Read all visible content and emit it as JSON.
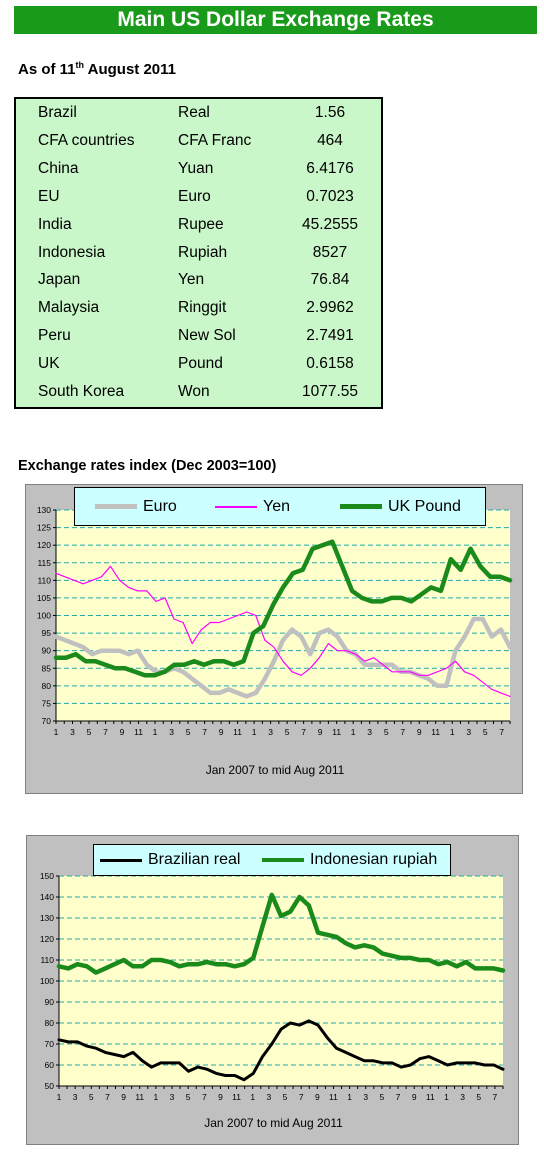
{
  "header": {
    "title": "Main US Dollar Exchange Rates"
  },
  "as_of": {
    "prefix": "As of 11",
    "suffix": "th",
    "rest": " August 2011"
  },
  "rates": [
    {
      "country": "Brazil",
      "currency": "Real",
      "value": "1.56"
    },
    {
      "country": "CFA countries",
      "currency": "CFA Franc",
      "value": "464"
    },
    {
      "country": "China",
      "currency": "Yuan",
      "value": "6.4176"
    },
    {
      "country": "EU",
      "currency": "Euro",
      "value": "0.7023"
    },
    {
      "country": "India",
      "currency": "Rupee",
      "value": "45.2555"
    },
    {
      "country": "Indonesia",
      "currency": "Rupiah",
      "value": "8527"
    },
    {
      "country": "Japan",
      "currency": "Yen",
      "value": "76.84"
    },
    {
      "country": "Malaysia",
      "currency": "Ringgit",
      "value": "2.9962"
    },
    {
      "country": "Peru",
      "currency": "New Sol",
      "value": "2.7491"
    },
    {
      "country": "UK",
      "currency": "Pound",
      "value": "0.6158"
    },
    {
      "country": "South Korea",
      "currency": "Won",
      "value": "1077.55"
    }
  ],
  "colors": {
    "title_bg": "#1a9a1a",
    "table_bg": "#c9f7c9",
    "plot_bg": "#ffffcc",
    "legend_bg": "#ccffff",
    "euro": "#c0c0c0",
    "yen": "#ff00ff",
    "pound": "#1a8a1a",
    "real": "#000000",
    "rupiah": "#1a8a1a"
  },
  "chart_data": [
    {
      "type": "line",
      "title": "Exchange rates index (Dec 2003=100)",
      "xlabel": "Jan 2007 to mid Aug  2011",
      "ylabel": "",
      "ylim": [
        70,
        130
      ],
      "yticks": [
        70,
        75,
        80,
        85,
        90,
        95,
        100,
        105,
        110,
        115,
        120,
        125,
        130
      ],
      "x_tick_labels": [
        "1",
        "",
        "3",
        "",
        "5",
        "",
        "7",
        "",
        "9",
        "",
        "11",
        "",
        "1",
        "",
        "3",
        "",
        "5",
        "",
        "7",
        "",
        "9",
        "",
        "11",
        "",
        "1",
        "",
        "3",
        "",
        "5",
        "",
        "7",
        "",
        "9",
        "",
        "11",
        "",
        "1",
        "",
        "3",
        "",
        "5",
        "",
        "7",
        "",
        "9",
        "",
        "11",
        "",
        "1",
        "",
        "3",
        "",
        "5",
        "",
        "7",
        ""
      ],
      "grid": "horizontal dashed",
      "legend_position": "top",
      "series": [
        {
          "name": "Euro",
          "values": [
            94,
            93,
            92,
            91,
            89,
            90,
            90,
            90,
            89,
            90,
            86,
            84,
            84,
            85,
            84,
            82,
            80,
            78,
            78,
            79,
            78,
            77,
            78,
            82,
            87,
            93,
            96,
            94,
            89,
            95,
            96,
            94,
            90,
            89,
            86,
            86,
            86,
            86,
            84,
            84,
            83,
            82,
            80,
            80,
            90,
            94,
            99,
            99,
            94,
            96,
            91
          ]
        },
        {
          "name": "Yen",
          "values": [
            112,
            111,
            110,
            109,
            110,
            111,
            114,
            110,
            108,
            107,
            107,
            104,
            105,
            99,
            98,
            92,
            96,
            98,
            98,
            99,
            100,
            101,
            100,
            93,
            91,
            87,
            84,
            83,
            85,
            88,
            92,
            90,
            90,
            89,
            87,
            88,
            86,
            84,
            84,
            84,
            83,
            83,
            84,
            85,
            87,
            84,
            83,
            81,
            79,
            78,
            77
          ]
        },
        {
          "name": "UK Pound",
          "values": [
            88,
            88,
            89,
            87,
            87,
            86,
            85,
            85,
            84,
            83,
            83,
            84,
            86,
            86,
            87,
            86,
            87,
            87,
            86,
            87,
            95,
            97,
            103,
            108,
            112,
            113,
            119,
            120,
            121,
            114,
            107,
            105,
            104,
            104,
            105,
            105,
            104,
            106,
            108,
            107,
            116,
            113,
            119,
            114,
            111,
            111,
            110
          ]
        }
      ]
    },
    {
      "type": "line",
      "title": "",
      "xlabel": "Jan 2007 to mid Aug 2011",
      "ylabel": "",
      "ylim": [
        50,
        150
      ],
      "yticks": [
        50,
        60,
        70,
        80,
        90,
        100,
        110,
        120,
        130,
        140,
        150
      ],
      "x_tick_labels": [
        "1",
        "",
        "3",
        "",
        "5",
        "",
        "7",
        "",
        "9",
        "",
        "11",
        "",
        "1",
        "",
        "3",
        "",
        "5",
        "",
        "7",
        "",
        "9",
        "",
        "11",
        "",
        "1",
        "",
        "3",
        "",
        "5",
        "",
        "7",
        "",
        "9",
        "",
        "11",
        "",
        "1",
        "",
        "3",
        "",
        "5",
        "",
        "7",
        "",
        "9",
        "",
        "11",
        "",
        "1",
        "",
        "3",
        "",
        "5",
        "",
        "7",
        ""
      ],
      "grid": "horizontal dashed",
      "legend_position": "top",
      "series": [
        {
          "name": "Brazilian real",
          "values": [
            72,
            71,
            71,
            69,
            68,
            66,
            65,
            64,
            66,
            62,
            59,
            61,
            61,
            61,
            57,
            59,
            58,
            56,
            55,
            55,
            53,
            56,
            64,
            70,
            77,
            80,
            79,
            81,
            79,
            73,
            68,
            66,
            64,
            62,
            62,
            61,
            61,
            59,
            60,
            63,
            64,
            62,
            60,
            61,
            61,
            61,
            60,
            60,
            58
          ]
        },
        {
          "name": "Indonesian rupiah",
          "values": [
            107,
            106,
            108,
            107,
            104,
            106,
            108,
            110,
            107,
            107,
            110,
            110,
            109,
            107,
            108,
            108,
            109,
            108,
            108,
            107,
            108,
            111,
            126,
            141,
            131,
            133,
            140,
            136,
            123,
            122,
            121,
            118,
            116,
            117,
            116,
            113,
            112,
            111,
            111,
            110,
            110,
            108,
            109,
            107,
            109,
            106,
            106,
            106,
            105
          ]
        }
      ]
    }
  ]
}
